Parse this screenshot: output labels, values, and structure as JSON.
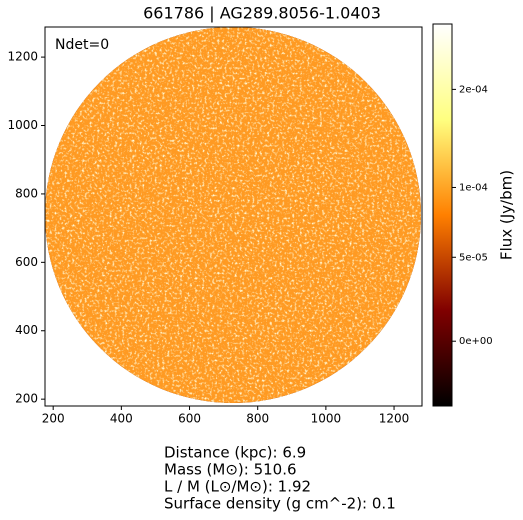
{
  "chart_data": {
    "type": "image",
    "title": "661786 | AG289.8056-1.0403",
    "annotation": "Ndet=0",
    "xlim": [
      176,
      1282
    ],
    "xticks": [
      200,
      400,
      600,
      800,
      1000,
      1200
    ],
    "ylim": [
      180,
      1288
    ],
    "yticks": [
      200,
      400,
      600,
      800,
      1000,
      1200
    ],
    "colormap": "afmhot",
    "colorbar": {
      "label": "Flux (Jy/bm)",
      "stretch": "asinh",
      "stretch_scale": 0.0001,
      "clim": [
        -3.8e-05,
        0.0003
      ],
      "ticks": [
        {
          "value": 0,
          "label": "0e+00"
        },
        {
          "value": 5e-05,
          "label": "5e-05"
        },
        {
          "value": 0.0001,
          "label": "1e-04"
        },
        {
          "value": 0.0002,
          "label": "2e-04"
        }
      ]
    },
    "notes": [
      "Distance (kpc): 6.9",
      "Mass (M⊙): 510.6",
      "L / M (L⊙/M⊙): 1.92",
      "Surface density (g cm^-2): 0.1"
    ]
  }
}
